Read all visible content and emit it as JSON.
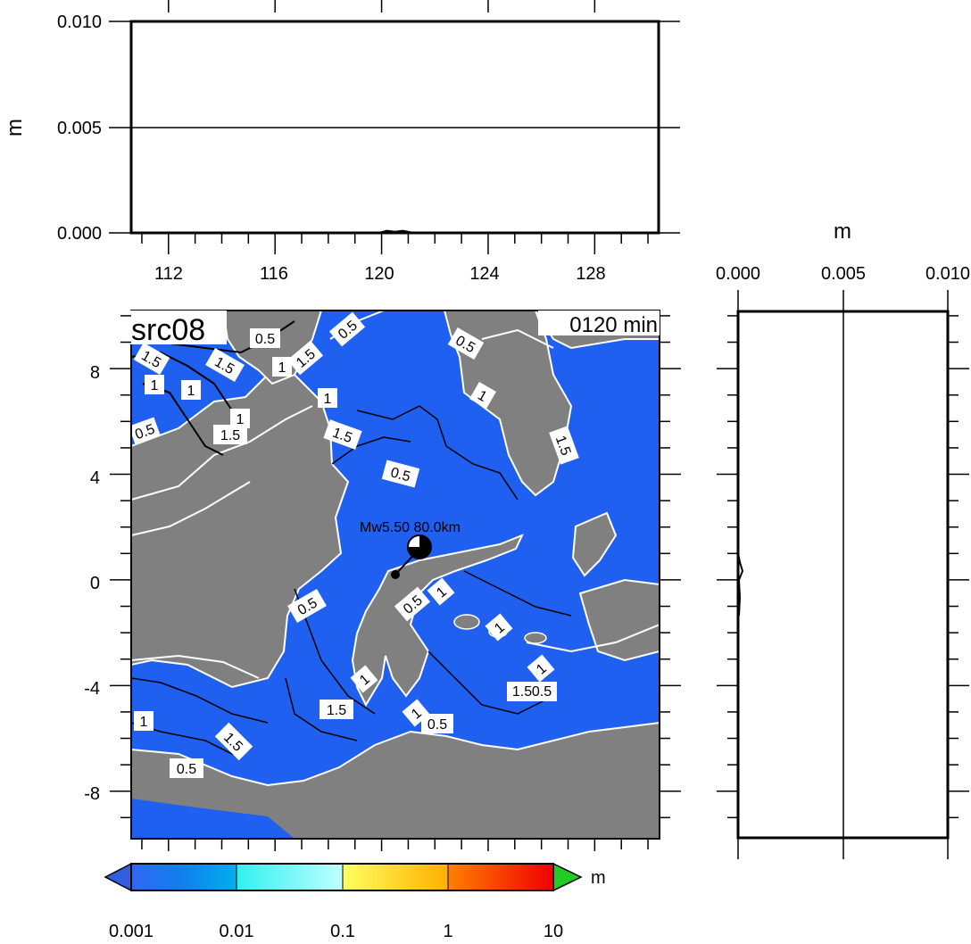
{
  "top_panel": {
    "ylabel": "m",
    "y_ticks": [
      "0.000",
      "0.005",
      "0.010"
    ],
    "ylim": [
      0.0,
      0.01
    ],
    "x_ticks": [
      "112",
      "116",
      "120",
      "124",
      "128"
    ],
    "xlim": [
      110.6,
      130.4
    ]
  },
  "right_panel": {
    "xlabel": "m",
    "x_ticks": [
      "0.000",
      "0.005",
      "0.010"
    ],
    "xlim": [
      0.0,
      0.01
    ]
  },
  "map": {
    "source_label": "src08",
    "time_label": "0120 min",
    "event_label": "Mw5.50  80.0km",
    "y_ticks": [
      "8",
      "4",
      "0",
      "-4",
      "-8"
    ],
    "ylim": [
      -9.8,
      10.2
    ],
    "xlim": [
      110.6,
      130.4
    ],
    "epicenter": {
      "lon": 121.6,
      "lat": 1.3
    },
    "contour_labels": [
      "0.5",
      "0.5",
      "0.5",
      "0.5",
      "0.5",
      "0.5",
      "0.5",
      "0.5",
      "0.5",
      "1",
      "1",
      "1",
      "1",
      "1",
      "1",
      "1",
      "1",
      "1.5",
      "1.5",
      "1.5",
      "1.5",
      "1.5",
      "1.5",
      "1.5",
      "1.5",
      "1.5"
    ],
    "colors": {
      "ocean": "#2060f0",
      "land": "#808080",
      "contour_white": "#ffffff",
      "contour_black": "#000000"
    }
  },
  "colorbar": {
    "unit": "m",
    "tick_labels": [
      "0.001",
      "0.01",
      "0.1",
      "1",
      "10"
    ],
    "under_color": "#3060e0",
    "over_color": "#22cc22"
  },
  "chart_data": {
    "type": "line",
    "title": "",
    "xlabel": "",
    "ylabel": "m",
    "xlim": [
      110.6,
      130.4
    ],
    "ylim": [
      0.0,
      0.01
    ],
    "series": [
      {
        "x": [
          110.6,
          119.9,
          120.2,
          120.5,
          120.8,
          121.2,
          130.4
        ],
        "values": [
          0.0,
          0.0,
          0.0001,
          5e-05,
          0.0001,
          0.0,
          0.0
        ]
      }
    ]
  }
}
